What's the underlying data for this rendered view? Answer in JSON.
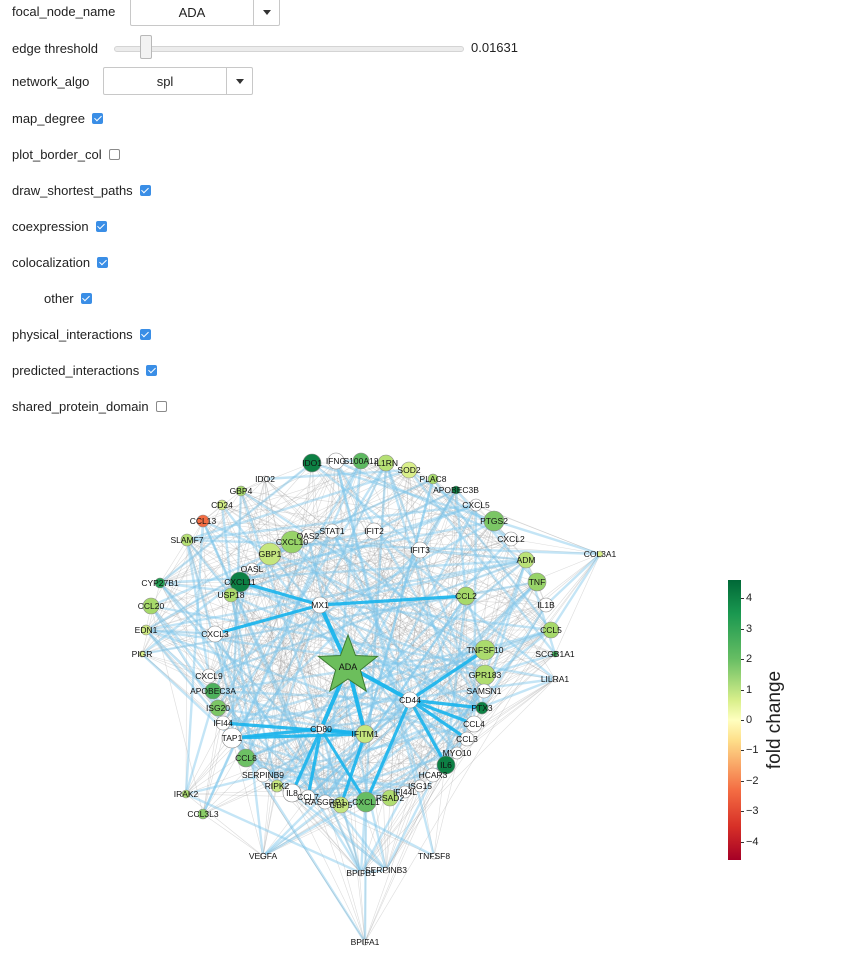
{
  "controls": {
    "focal_node": {
      "label": "focal_node_name",
      "value": "ADA"
    },
    "edge_threshold": {
      "label": "edge threshold",
      "value": "0.01631",
      "fraction": 0.1
    },
    "network_algo": {
      "label": "network_algo",
      "value": "spl"
    },
    "checkboxes": [
      {
        "label": "map_degree",
        "checked": true
      },
      {
        "label": "plot_border_col",
        "checked": false
      },
      {
        "label": "draw_shortest_paths",
        "checked": true
      },
      {
        "label": "coexpression",
        "checked": true
      },
      {
        "label": "colocalization",
        "checked": true
      },
      {
        "label": "other",
        "checked": true
      },
      {
        "label": "physical_interactions",
        "checked": true
      },
      {
        "label": "predicted_interactions",
        "checked": true
      },
      {
        "label": "shared_protein_domain",
        "checked": false
      }
    ]
  },
  "colorbar": {
    "label": "fold change",
    "ticks": [
      "4",
      "3",
      "2",
      "1",
      "0",
      "−1",
      "−2",
      "−3",
      "−4"
    ],
    "min": -4.6,
    "max": 4.6
  },
  "network": {
    "focal": "ADA",
    "nodes": [
      [
        "IDO1",
        312,
        463,
        9,
        4.0
      ],
      [
        "IFNG",
        336,
        461,
        8,
        null
      ],
      [
        "S100A12",
        361,
        461,
        8,
        2.6
      ],
      [
        "IL1RN",
        386,
        463,
        8,
        1.3
      ],
      [
        "SOD2",
        409,
        470,
        8,
        0.6
      ],
      [
        "PLAC8",
        433,
        479,
        5,
        1.6
      ],
      [
        "APOBEC3B",
        456,
        490,
        4,
        4.0
      ],
      [
        "CXCL5",
        476,
        505,
        6,
        null
      ],
      [
        "PTGS2",
        494,
        521,
        10,
        2.2
      ],
      [
        "CXCL2",
        511,
        539,
        7,
        null
      ],
      [
        "COL3A1",
        600,
        554,
        3,
        0.6
      ],
      [
        "ADM",
        526,
        560,
        8,
        1.2
      ],
      [
        "TNF",
        537,
        582,
        9,
        1.8
      ],
      [
        "IL1B",
        546,
        605,
        7,
        null
      ],
      [
        "CCL5",
        551,
        630,
        8,
        1.6
      ],
      [
        "SCGB1A1",
        555,
        654,
        3,
        3.0
      ],
      [
        "LILRA1",
        555,
        679,
        3,
        null
      ],
      [
        "IDO2",
        265,
        479,
        3,
        null
      ],
      [
        "GBP4",
        241,
        491,
        5,
        1.6
      ],
      [
        "CD24",
        222,
        505,
        5,
        0.8
      ],
      [
        "CCL13",
        203,
        521,
        6,
        -1.5
      ],
      [
        "SLAMF7",
        187,
        540,
        6,
        1.3
      ],
      [
        "CYP27B1",
        160,
        583,
        5,
        3.3
      ],
      [
        "CCL20",
        151,
        606,
        8,
        1.6
      ],
      [
        "EDN1",
        146,
        630,
        5,
        0.8
      ],
      [
        "PIGR",
        142,
        654,
        3,
        0.6
      ],
      [
        "OAS2",
        308,
        536,
        7,
        null
      ],
      [
        "STAT1",
        332,
        531,
        7,
        null
      ],
      [
        "IFIT2",
        374,
        531,
        8,
        null
      ],
      [
        "CXCL10",
        292,
        542,
        11,
        1.8
      ],
      [
        "GBP1",
        270,
        554,
        11,
        1.0
      ],
      [
        "IFIT3",
        420,
        550,
        8,
        null
      ],
      [
        "OASL",
        252,
        569,
        6,
        null
      ],
      [
        "CXCL11",
        240,
        582,
        10,
        4.0
      ],
      [
        "USP18",
        231,
        595,
        7,
        1.5
      ],
      [
        "MX1",
        320,
        605,
        8,
        null
      ],
      [
        "CCL2",
        466,
        596,
        9,
        1.6
      ],
      [
        "CXCL3",
        215,
        634,
        8,
        null
      ],
      [
        "TNFSF10",
        485,
        650,
        10,
        1.5
      ],
      [
        "GPR183",
        485,
        675,
        10,
        1.4
      ],
      [
        "SAMSN1",
        484,
        691,
        7,
        null
      ],
      [
        "PTX3",
        482,
        708,
        6,
        4.0
      ],
      [
        "CD44",
        410,
        700,
        8,
        null
      ],
      [
        "CCL4",
        474,
        724,
        8,
        null
      ],
      [
        "CCL3",
        467,
        739,
        7,
        null
      ],
      [
        "MYO10",
        457,
        753,
        6,
        null
      ],
      [
        "IL6",
        446,
        765,
        9,
        4.0
      ],
      [
        "HCAR3",
        433,
        775,
        7,
        null
      ],
      [
        "ISG15",
        420,
        786,
        6,
        null
      ],
      [
        "IFI44L",
        405,
        792,
        6,
        null
      ],
      [
        "RSAD2",
        390,
        798,
        8,
        1.4
      ],
      [
        "CXCL1",
        366,
        802,
        10,
        2.5
      ],
      [
        "GBP5",
        341,
        805,
        8,
        1.0
      ],
      [
        "RASGRP1",
        325,
        802,
        7,
        null
      ],
      [
        "CCL7",
        308,
        797,
        7,
        null
      ],
      [
        "IL8",
        292,
        793,
        9,
        null
      ],
      [
        "RIPK2",
        277,
        786,
        6,
        1.0
      ],
      [
        "SERPINB9",
        263,
        775,
        7,
        null
      ],
      [
        "CCL8",
        246,
        758,
        9,
        2.4
      ],
      [
        "TAP1",
        232,
        738,
        10,
        null
      ],
      [
        "IFI44",
        223,
        723,
        7,
        null
      ],
      [
        "ISG20",
        218,
        708,
        8,
        2.2
      ],
      [
        "APOBEC3A",
        213,
        691,
        8,
        2.8
      ],
      [
        "CXCL9",
        209,
        676,
        7,
        null
      ],
      [
        "CD80",
        321,
        729,
        5,
        null
      ],
      [
        "IFITM1",
        365,
        734,
        9,
        1.0
      ],
      [
        "IRAK2",
        186,
        794,
        4,
        1.5
      ],
      [
        "CCL3L3",
        203,
        814,
        5,
        2.0
      ],
      [
        "VEGFA",
        263,
        856,
        3,
        null
      ],
      [
        "TNFSF8",
        434,
        856,
        3,
        null
      ],
      [
        "SERPINB3",
        386,
        870,
        3,
        null
      ],
      [
        "BPIFB1",
        361,
        873,
        3,
        null
      ],
      [
        "BPIFA1",
        365,
        942,
        3,
        null
      ]
    ]
  }
}
